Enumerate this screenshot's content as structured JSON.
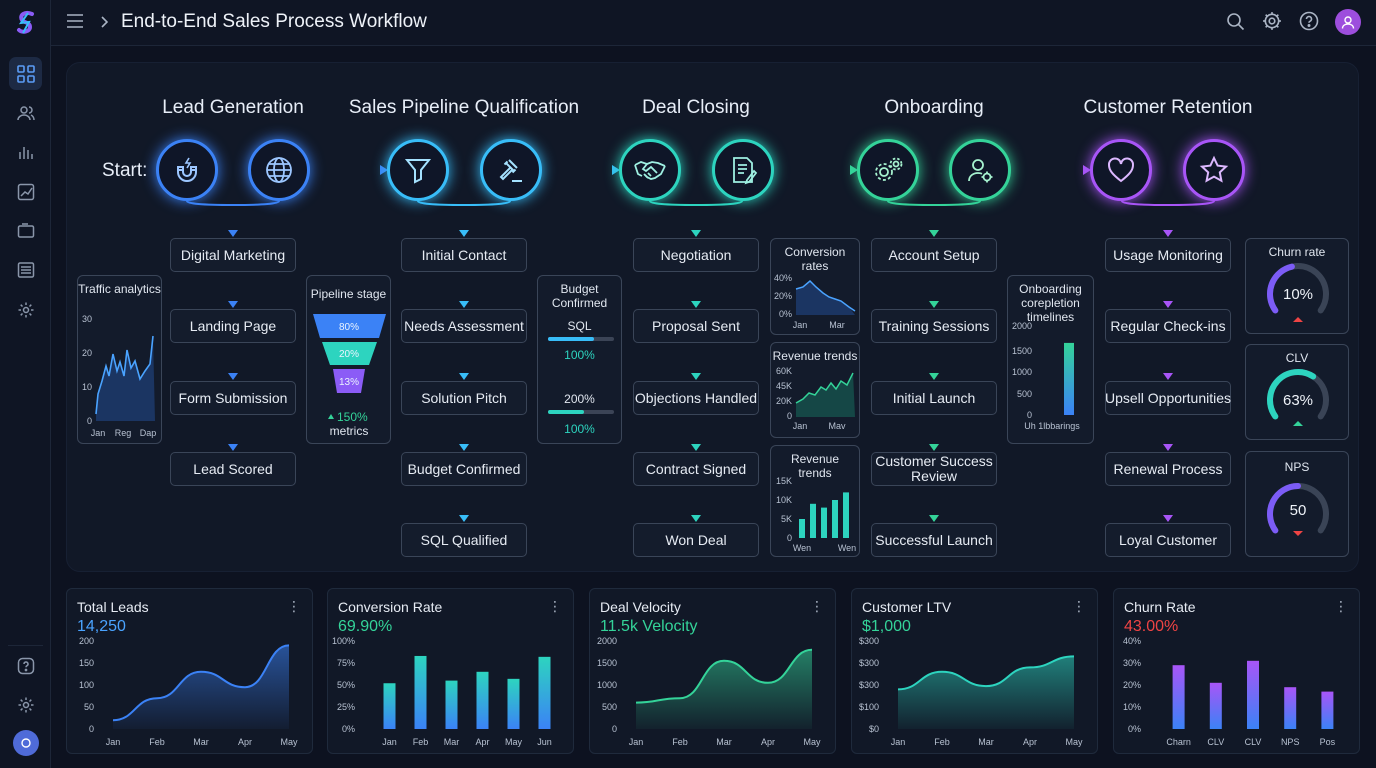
{
  "header": {
    "title": "End-to-End Sales Process Workflow"
  },
  "sidebar": {
    "items": [
      "dashboard-icon",
      "users-icon",
      "bar-chart-icon",
      "trend-chart-icon",
      "folder-icon",
      "list-icon",
      "settings-icon"
    ],
    "bottom": [
      "help-icon",
      "settings-icon",
      "avatar"
    ]
  },
  "flow": {
    "start_label": "Start:",
    "phases": [
      {
        "title": "Lead Generation",
        "icons": [
          "magnet-icon",
          "globe-icon"
        ],
        "color": "#3b82f6",
        "steps": [
          "Digital Marketing",
          "Landing Page",
          "Form Submission",
          "Lead Scored"
        ]
      },
      {
        "title": "Sales Pipeline Qualification",
        "icons": [
          "funnel-icon",
          "gavel-icon"
        ],
        "color": "#38bdf8",
        "steps": [
          "Initial Contact",
          "Needs Assessment",
          "Solution Pitch",
          "Budget Confirmed",
          "SQL Qualified"
        ]
      },
      {
        "title": "Deal Closing",
        "icons": [
          "handshake-icon",
          "document-pen-icon"
        ],
        "color": "#2dd4bf",
        "steps": [
          "Negotiation",
          "Proposal Sent",
          "Objections Handled",
          "Contract Signed",
          "Won Deal"
        ]
      },
      {
        "title": "Onboarding",
        "icons": [
          "gears-icon",
          "user-settings-icon"
        ],
        "color": "#34d399",
        "steps": [
          "Account Setup",
          "Training Sessions",
          "Initial Launch",
          "Customer Success Review",
          "Successful Launch"
        ]
      },
      {
        "title": "Customer Retention",
        "icons": [
          "heart-icon",
          "star-icon"
        ],
        "color": "#a855f7",
        "steps": [
          "Usage Monitoring",
          "Regular Check-ins",
          "Upsell Opportunities",
          "Renewal Process",
          "Loyal Customer"
        ]
      }
    ]
  },
  "widgets": {
    "traffic": {
      "title": "Traffic analytics",
      "yticks": [
        "30",
        "20",
        "10",
        "0"
      ],
      "xticks": [
        "Jan",
        "Reg",
        "Dap"
      ]
    },
    "pipeline": {
      "title": "Pipeline stage",
      "levels": [
        "80%",
        "20%",
        "13%"
      ],
      "footer_value": "150%",
      "footer_label": "metrics"
    },
    "budget": {
      "title": "Budget Confirmed",
      "sql_label": "SQL",
      "sql_value": "100%",
      "second_label": "200%",
      "second_value": "100%",
      "sql_fill": 0.7,
      "second_fill": 0.55
    },
    "conversion": {
      "title": "Conversion rates",
      "yticks": [
        "40%",
        "20%",
        "0%"
      ],
      "xticks": [
        "Jan",
        "Mar"
      ]
    },
    "revenue1": {
      "title": "Revenue trends",
      "yticks": [
        "60K",
        "45K",
        "20K",
        "0"
      ],
      "xticks": [
        "Jan",
        "Mav"
      ]
    },
    "revenue2": {
      "title": "Revenue trends",
      "yticks": [
        "15K",
        "10K",
        "5K",
        "0"
      ],
      "xticks": [
        "Wen",
        "Wen"
      ],
      "values": [
        5,
        9,
        8,
        10,
        12
      ]
    },
    "onboarding": {
      "title": "Onboarding corepletion timelines",
      "yticks": [
        "2000",
        "1500",
        "1000",
        "500",
        "0"
      ],
      "xlabel": "Uh 1lbbarings",
      "bar_value": 1620
    },
    "churn": {
      "title": "Churn rate",
      "value": "10%",
      "fill": 0.45,
      "trend": "down"
    },
    "clv": {
      "title": "CLV",
      "value": "63%",
      "fill": 0.63,
      "trend": "up"
    },
    "nps": {
      "title": "NPS",
      "value": "50",
      "fill": 0.5,
      "trend": "down"
    }
  },
  "colors": {
    "blue": "#3b82f6",
    "cyan": "#38bdf8",
    "teal": "#2dd4bf",
    "green": "#34d399",
    "purple": "#a855f7",
    "red": "#ef4444"
  },
  "kpis": [
    {
      "title": "Total Leads",
      "value": "14,250",
      "value_color": "#4aa3ff",
      "chart_data": {
        "type": "area",
        "categories": [
          "Jan",
          "Feb",
          "Mar",
          "Apr",
          "May"
        ],
        "yticks": [
          "200",
          "150",
          "100",
          "50",
          "0"
        ],
        "ylim": [
          0,
          200
        ],
        "values": [
          20,
          70,
          130,
          95,
          190
        ],
        "color": "#3b82f6"
      }
    },
    {
      "title": "Conversion Rate",
      "value": "69.90%",
      "value_color": "#34d399",
      "chart_data": {
        "type": "bar",
        "categories": [
          "Jan",
          "Feb",
          "Mar",
          "Apr",
          "May",
          "Jun"
        ],
        "yticks": [
          "100%",
          "75%",
          "50%",
          "25%",
          "0%"
        ],
        "ylim": [
          0,
          100
        ],
        "values": [
          52,
          83,
          55,
          65,
          57,
          82
        ],
        "color": "#2dd4bf"
      }
    },
    {
      "title": "Deal Velocity",
      "value": "11.5k Velocity",
      "value_color": "#34d399",
      "chart_data": {
        "type": "area",
        "categories": [
          "Jan",
          "Feb",
          "Mar",
          "Apr",
          "May"
        ],
        "yticks": [
          "2000",
          "1500",
          "1000",
          "500",
          "0"
        ],
        "ylim": [
          0,
          2000
        ],
        "values": [
          600,
          700,
          1550,
          1050,
          1800
        ],
        "color": "#34d399"
      }
    },
    {
      "title": "Customer LTV",
      "value": "$1,000",
      "value_color": "#34d399",
      "chart_data": {
        "type": "area",
        "categories": [
          "Jan",
          "Feb",
          "Mar",
          "Apr",
          "May"
        ],
        "yticks": [
          "$300",
          "$300",
          "$300",
          "$100",
          "$0"
        ],
        "ylim": [
          0,
          400
        ],
        "values": [
          180,
          260,
          195,
          280,
          330
        ],
        "color": "#2dd4bf"
      }
    },
    {
      "title": "Churn Rate",
      "value": "43.00%",
      "value_color": "#ef4444",
      "chart_data": {
        "type": "bar",
        "categories": [
          "Charn",
          "CLV",
          "CLV",
          "NPS",
          "Pos"
        ],
        "yticks": [
          "40%",
          "30%",
          "20%",
          "10%",
          "0%"
        ],
        "ylim": [
          0,
          40
        ],
        "values": [
          29,
          21,
          31,
          19,
          17
        ],
        "color": "#a855f7"
      }
    }
  ]
}
